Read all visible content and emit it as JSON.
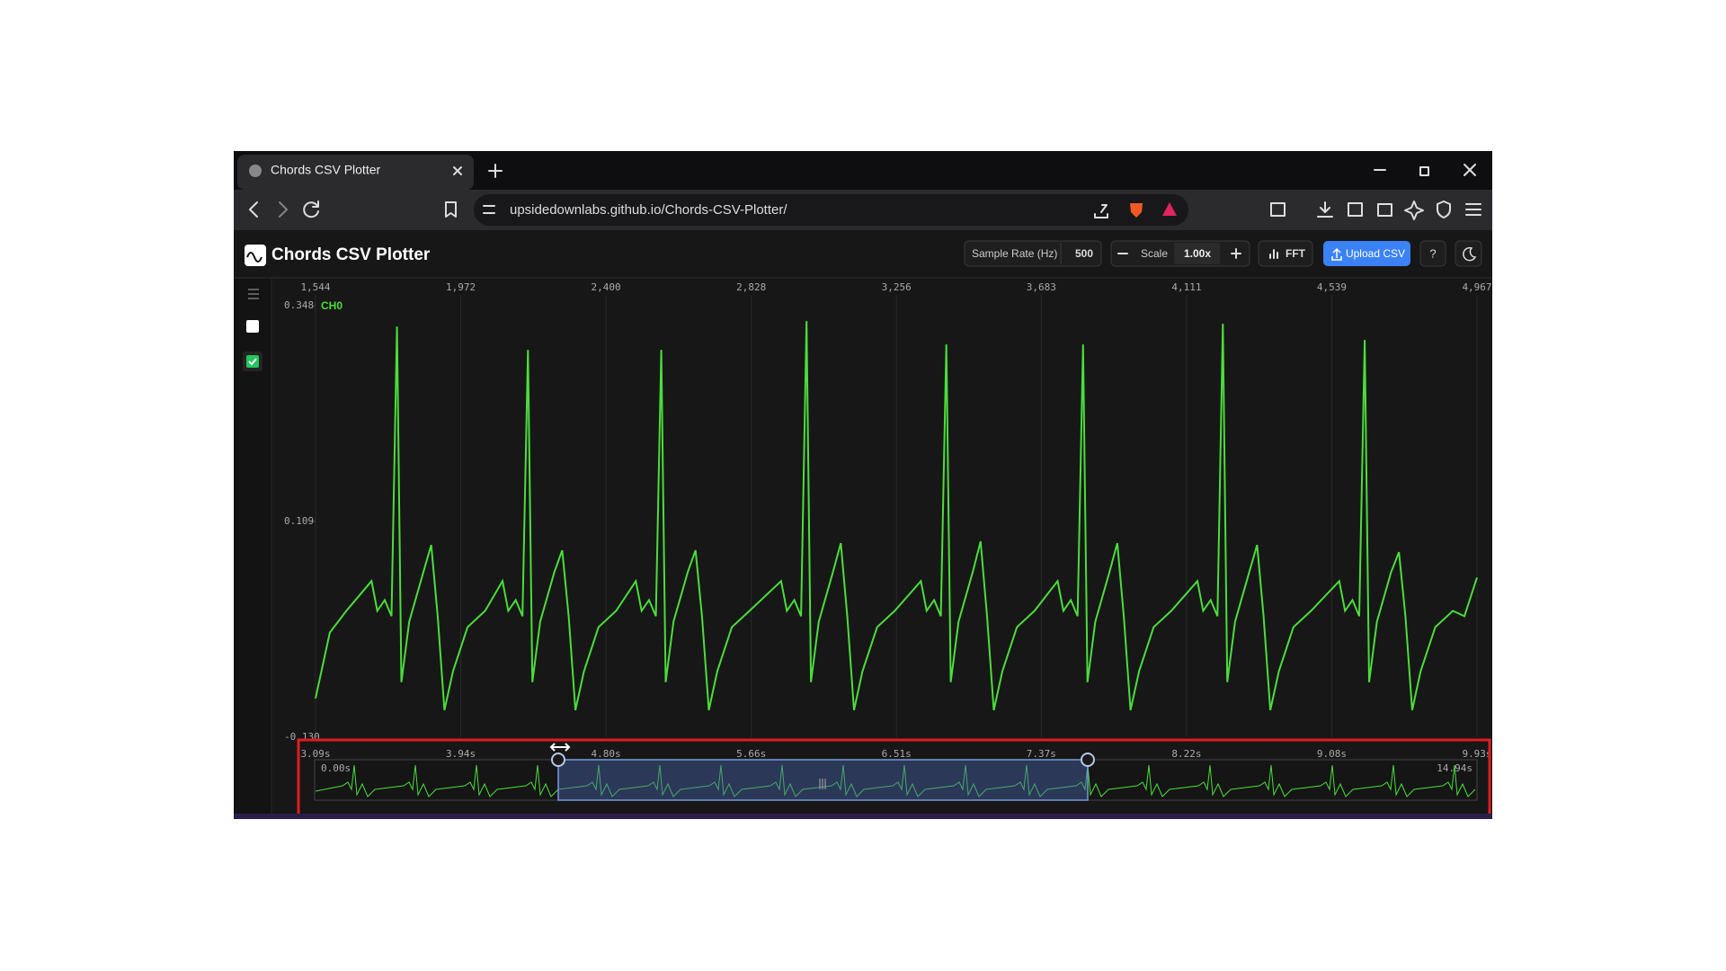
{
  "browser": {
    "tab_title": "Chords CSV Plotter",
    "url": "upsidedownlabs.github.io/Chords-CSV-Plotter/"
  },
  "app": {
    "title": "Chords CSV Plotter",
    "sample_rate_label": "Sample Rate (Hz)",
    "sample_rate": "500",
    "scale_label": "Scale",
    "scale": "1.00x",
    "fft": "FFT",
    "upload": "Upload CSV",
    "help": "?"
  },
  "chart_data": {
    "type": "line",
    "x": [
      1544,
      1586,
      1635,
      1709,
      1726,
      1748,
      1768,
      1784,
      1797,
      1820,
      1862,
      1885,
      1904,
      1924,
      1949,
      1992,
      2044,
      2095,
      2112,
      2134,
      2154,
      2170,
      2183,
      2206,
      2248,
      2271,
      2290,
      2310,
      2335,
      2378,
      2430,
      2488,
      2505,
      2527,
      2547,
      2563,
      2576,
      2599,
      2641,
      2664,
      2683,
      2703,
      2728,
      2771,
      2823,
      2916,
      2933,
      2955,
      2975,
      2991,
      3004,
      3027,
      3069,
      3092,
      3111,
      3131,
      3156,
      3199,
      3251,
      3328,
      3345,
      3367,
      3387,
      3403,
      3416,
      3439,
      3481,
      3504,
      3523,
      3543,
      3568,
      3611,
      3663,
      3731,
      3748,
      3770,
      3790,
      3806,
      3819,
      3842,
      3884,
      3907,
      3926,
      3946,
      3971,
      4014,
      4066,
      4143,
      4160,
      4182,
      4202,
      4218,
      4231,
      4254,
      4296,
      4319,
      4338,
      4358,
      4383,
      4426,
      4478,
      4561,
      4578,
      4600,
      4620,
      4636,
      4649,
      4672,
      4714,
      4737,
      4756,
      4776,
      4801,
      4844,
      4896,
      4930,
      4967
    ],
    "series": [
      {
        "name": "CH0",
        "color": "#4ade3a",
        "values": [
          -0.087,
          -0.014,
          0.01,
          0.043,
          0.01,
          0.022,
          0.004,
          0.325,
          -0.069,
          -0.002,
          0.053,
          0.083,
          0.004,
          -0.1,
          -0.057,
          -0.008,
          0.01,
          0.043,
          0.01,
          0.022,
          0.004,
          0.299,
          -0.069,
          -0.002,
          0.053,
          0.077,
          0.004,
          -0.1,
          -0.057,
          -0.008,
          0.01,
          0.043,
          0.01,
          0.022,
          0.004,
          0.299,
          -0.069,
          -0.002,
          0.053,
          0.077,
          0.004,
          -0.1,
          -0.057,
          -0.008,
          0.01,
          0.043,
          0.01,
          0.022,
          0.004,
          0.331,
          -0.069,
          -0.002,
          0.053,
          0.085,
          0.004,
          -0.1,
          -0.057,
          -0.008,
          0.01,
          0.043,
          0.01,
          0.022,
          0.004,
          0.305,
          -0.069,
          -0.002,
          0.053,
          0.087,
          0.004,
          -0.1,
          -0.057,
          -0.008,
          0.01,
          0.043,
          0.01,
          0.022,
          0.004,
          0.305,
          -0.069,
          -0.002,
          0.053,
          0.085,
          0.004,
          -0.1,
          -0.057,
          -0.008,
          0.01,
          0.043,
          0.01,
          0.022,
          0.004,
          0.328,
          -0.069,
          -0.002,
          0.053,
          0.083,
          0.004,
          -0.1,
          -0.057,
          -0.008,
          0.01,
          0.043,
          0.01,
          0.022,
          0.004,
          0.31,
          -0.069,
          -0.002,
          0.053,
          0.075,
          0.004,
          -0.1,
          -0.057,
          -0.008,
          0.01,
          0.004,
          0.047
        ]
      }
    ],
    "xlim": [
      1544,
      4967
    ],
    "ylim": [
      -0.13,
      0.348
    ],
    "xticks": [
      {
        "value": 1544,
        "label": "1,544"
      },
      {
        "value": 1972,
        "label": "1,972"
      },
      {
        "value": 2400,
        "label": "2,400"
      },
      {
        "value": 2828,
        "label": "2,828"
      },
      {
        "value": 3256,
        "label": "3,256"
      },
      {
        "value": 3683,
        "label": "3,683"
      },
      {
        "value": 4111,
        "label": "4,111"
      },
      {
        "value": 4539,
        "label": "4,539"
      },
      {
        "value": 4967,
        "label": "4,967"
      }
    ],
    "yticks": [
      {
        "value": -0.13,
        "label": "-0.130"
      },
      0.109,
      0.348
    ],
    "grid": true
  },
  "navigator": {
    "ticks": [
      "3.09s",
      "3.94s",
      "4.80s",
      "5.66s",
      "6.51s",
      "7.37s",
      "8.22s",
      "9.08s",
      "9.93s"
    ],
    "start": "0.00s",
    "end": "14.94s"
  }
}
